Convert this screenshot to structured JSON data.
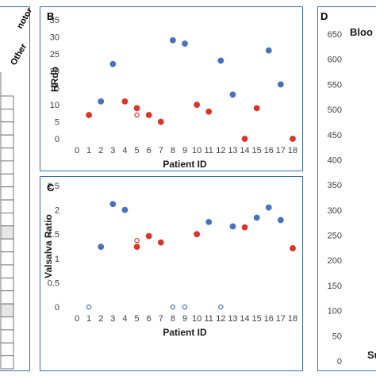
{
  "colors": {
    "control": "#4a72b8",
    "patient": "#d9352a",
    "frame": "#3f6fb0"
  },
  "panel_a": {
    "header_1": "notor",
    "header_2": "Other",
    "rows": 21,
    "shaded_rows": [
      10,
      16
    ]
  },
  "panel_d": {
    "letter": "D",
    "title_fragment": "Bloo",
    "bottom_fragment": "Su",
    "ticks": [
      "650",
      "600",
      "550",
      "500",
      "450",
      "400",
      "350",
      "300",
      "250",
      "200",
      "150",
      "100",
      "50",
      "0"
    ]
  },
  "chart_data": [
    {
      "panel": "B",
      "type": "scatter",
      "xlabel": "Patient ID",
      "ylabel": "HRdb",
      "xlim": [
        0,
        18
      ],
      "ylim": [
        0,
        35
      ],
      "xticks": [
        0,
        1,
        2,
        3,
        4,
        5,
        6,
        7,
        8,
        9,
        10,
        11,
        12,
        13,
        14,
        15,
        16,
        17,
        18
      ],
      "yticks": [
        0,
        5,
        10,
        15,
        20,
        25,
        30,
        35
      ],
      "points": [
        {
          "x": 1,
          "y": 7,
          "color": "patient",
          "filled": true
        },
        {
          "x": 2,
          "y": 11,
          "color": "control",
          "filled": true
        },
        {
          "x": 3,
          "y": 22,
          "color": "control",
          "filled": true
        },
        {
          "x": 4,
          "y": 11,
          "color": "patient",
          "filled": true
        },
        {
          "x": 5,
          "y": 9,
          "color": "patient",
          "filled": true
        },
        {
          "x": 5,
          "y": 7,
          "color": "patient",
          "filled": false
        },
        {
          "x": 6,
          "y": 7,
          "color": "patient",
          "filled": true
        },
        {
          "x": 7,
          "y": 5,
          "color": "patient",
          "filled": true
        },
        {
          "x": 8,
          "y": 29,
          "color": "control",
          "filled": true
        },
        {
          "x": 9,
          "y": 28,
          "color": "control",
          "filled": true
        },
        {
          "x": 10,
          "y": 10,
          "color": "patient",
          "filled": true
        },
        {
          "x": 11,
          "y": 8,
          "color": "patient",
          "filled": true
        },
        {
          "x": 12,
          "y": 23,
          "color": "control",
          "filled": true
        },
        {
          "x": 13,
          "y": 13,
          "color": "control",
          "filled": true
        },
        {
          "x": 14,
          "y": 0,
          "color": "patient",
          "filled": true
        },
        {
          "x": 15,
          "y": 9,
          "color": "patient",
          "filled": true
        },
        {
          "x": 16,
          "y": 26,
          "color": "control",
          "filled": true
        },
        {
          "x": 17,
          "y": 16,
          "color": "control",
          "filled": true
        },
        {
          "x": 18,
          "y": 0,
          "color": "patient",
          "filled": true
        }
      ]
    },
    {
      "panel": "C",
      "type": "scatter",
      "xlabel": "Patient ID",
      "ylabel": "Valsalva Ratio",
      "xlim": [
        0,
        18
      ],
      "ylim": [
        0,
        2.5
      ],
      "xticks": [
        0,
        1,
        2,
        3,
        4,
        5,
        6,
        7,
        8,
        9,
        10,
        11,
        12,
        13,
        14,
        15,
        16,
        17,
        18
      ],
      "yticks": [
        "0",
        "0.5",
        "1",
        "1.5",
        "2",
        "2.5"
      ],
      "points": [
        {
          "x": 1,
          "y": 0,
          "color": "control",
          "filled": false
        },
        {
          "x": 2,
          "y": 1.24,
          "color": "control",
          "filled": true
        },
        {
          "x": 3,
          "y": 2.12,
          "color": "control",
          "filled": true
        },
        {
          "x": 4,
          "y": 2.0,
          "color": "control",
          "filled": true
        },
        {
          "x": 5,
          "y": 1.37,
          "color": "patient",
          "filled": false
        },
        {
          "x": 5,
          "y": 1.24,
          "color": "patient",
          "filled": true
        },
        {
          "x": 6,
          "y": 1.46,
          "color": "patient",
          "filled": true
        },
        {
          "x": 7,
          "y": 1.33,
          "color": "patient",
          "filled": true
        },
        {
          "x": 8,
          "y": 0,
          "color": "control",
          "filled": false
        },
        {
          "x": 9,
          "y": 0,
          "color": "control",
          "filled": false
        },
        {
          "x": 10,
          "y": 1.5,
          "color": "patient",
          "filled": true
        },
        {
          "x": 11,
          "y": 1.75,
          "color": "control",
          "filled": true
        },
        {
          "x": 12,
          "y": 0,
          "color": "control",
          "filled": false
        },
        {
          "x": 13,
          "y": 1.66,
          "color": "control",
          "filled": true
        },
        {
          "x": 14,
          "y": 1.64,
          "color": "patient",
          "filled": true
        },
        {
          "x": 15,
          "y": 1.84,
          "color": "control",
          "filled": true
        },
        {
          "x": 16,
          "y": 2.05,
          "color": "control",
          "filled": true
        },
        {
          "x": 17,
          "y": 1.79,
          "color": "control",
          "filled": true
        },
        {
          "x": 18,
          "y": 1.21,
          "color": "patient",
          "filled": true
        }
      ]
    }
  ]
}
